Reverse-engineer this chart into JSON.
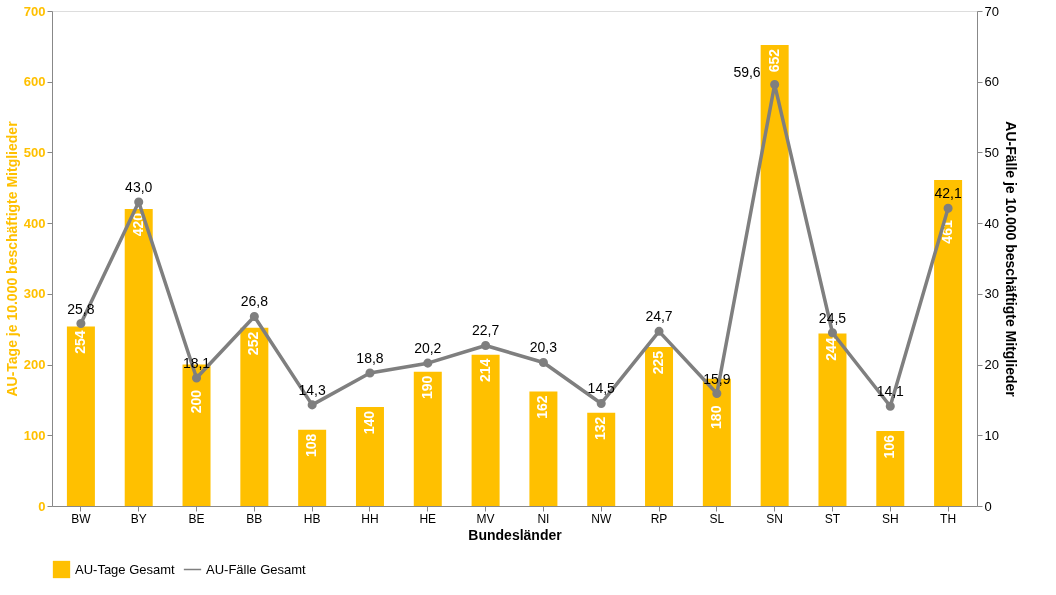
{
  "chart_data": {
    "type": "bar",
    "xlabel": "Bundesländer",
    "ylabel": "AU-Tage je 10.000 beschäftigte Mitglieder",
    "y2label": "AU-Fälle je 10.000 beschäftigte Mitglieder",
    "categories": [
      "BW",
      "BY",
      "BE",
      "BB",
      "HB",
      "HH",
      "HE",
      "MV",
      "NI",
      "NW",
      "RP",
      "SL",
      "SN",
      "ST",
      "SH",
      "TH"
    ],
    "series": [
      {
        "name": "AU-Tage Gesamt",
        "color": "#ffc000",
        "values": [
          254,
          420,
          200,
          252,
          108,
          140,
          190,
          214,
          162,
          132,
          225,
          180,
          652,
          244,
          106,
          461
        ],
        "value_labels": [
          "254",
          "420",
          "200",
          "252",
          "108",
          "140",
          "190",
          "214",
          "162",
          "132",
          "225",
          "180",
          "652",
          "244",
          "106",
          "461"
        ]
      },
      {
        "name": "AU-Fälle Gesamt",
        "type": "line",
        "axis": "y2",
        "color": "#7f7f7f",
        "marker": "circle",
        "values": [
          25.8,
          43.0,
          18.1,
          26.8,
          14.3,
          18.8,
          20.2,
          22.7,
          20.3,
          14.5,
          24.7,
          15.9,
          59.6,
          24.5,
          14.1,
          42.1
        ],
        "value_labels": [
          "25,8",
          "43,0",
          "18,1",
          "26,8",
          "14,3",
          "18,8",
          "20,2",
          "22,7",
          "20,3",
          "14,5",
          "24,7",
          "15,9",
          "59,6",
          "24,5",
          "14,1",
          "42,1"
        ]
      }
    ],
    "ylim": [
      0,
      700
    ],
    "yticks": [
      0,
      100,
      200,
      300,
      400,
      500,
      600,
      700
    ],
    "y2lim": [
      0,
      70
    ],
    "y2ticks": [
      0,
      10,
      20,
      30,
      40,
      50,
      60,
      70
    ],
    "grid": false,
    "legend": "bottom"
  }
}
